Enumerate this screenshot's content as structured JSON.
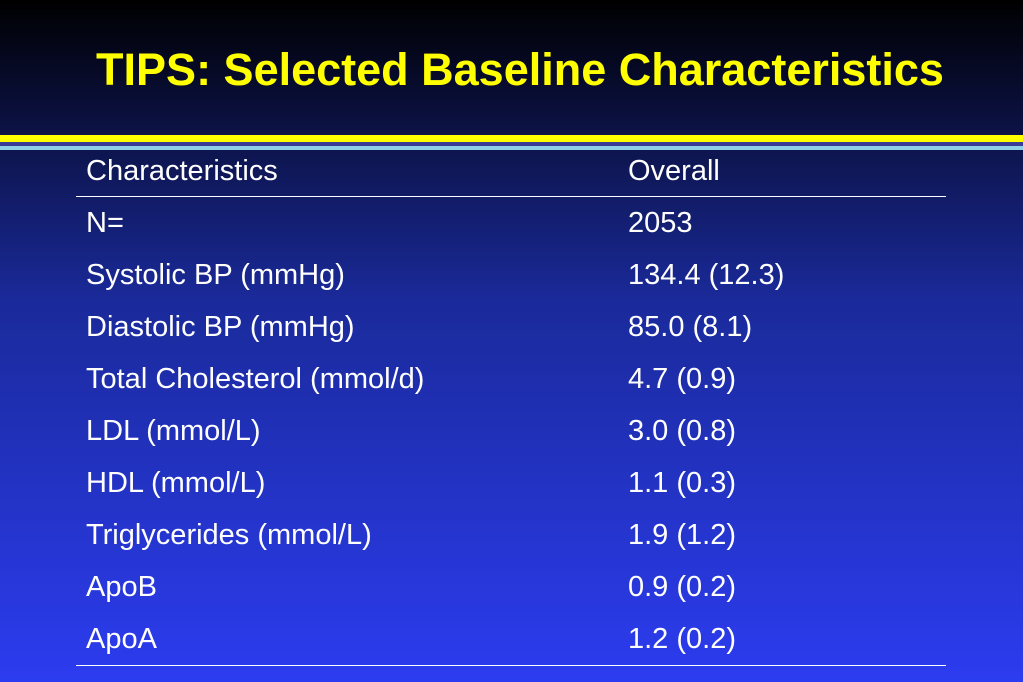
{
  "slide": {
    "title": "TIPS: Selected Baseline Characteristics"
  },
  "table": {
    "headers": [
      "Characteristics",
      "Overall"
    ],
    "rows": [
      [
        "N=",
        "2053"
      ],
      [
        "Systolic BP (mmHg)",
        "134.4 (12.3)"
      ],
      [
        "Diastolic BP (mmHg)",
        "85.0 (8.1)"
      ],
      [
        "Total Cholesterol (mmol/d)",
        "4.7 (0.9)"
      ],
      [
        "LDL  (mmol/L)",
        "3.0 (0.8)"
      ],
      [
        "HDL (mmol/L)",
        "1.1 (0.3)"
      ],
      [
        "Triglycerides (mmol/L)",
        "1.9 (1.2)"
      ],
      [
        "ApoB",
        "0.9 (0.2)"
      ],
      [
        "ApoA",
        "1.2 (0.2)"
      ]
    ]
  },
  "colors": {
    "title_text": "#ffff00",
    "title_bar": "#ffff00",
    "background_top": "#000000",
    "background_bottom": "#2c3cf0",
    "table_text": "#ffffff"
  }
}
